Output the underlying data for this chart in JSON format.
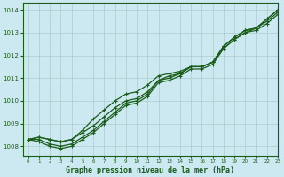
{
  "title": "Graphe pression niveau de la mer (hPa)",
  "bg_color": "#cce8f0",
  "grid_color": "#aacccc",
  "line_color": "#1a5c1a",
  "xlim": [
    -0.5,
    23
  ],
  "ylim": [
    1007.6,
    1014.3
  ],
  "yticks": [
    1008,
    1009,
    1010,
    1011,
    1012,
    1013,
    1014
  ],
  "xticks": [
    0,
    1,
    2,
    3,
    4,
    5,
    6,
    7,
    8,
    9,
    10,
    11,
    12,
    13,
    14,
    15,
    16,
    17,
    18,
    19,
    20,
    21,
    22,
    23
  ],
  "series": [
    [
      1008.3,
      1008.4,
      1008.3,
      1008.2,
      1008.3,
      1008.6,
      1008.9,
      1009.3,
      1009.7,
      1010.0,
      1010.1,
      1010.4,
      1010.9,
      1011.1,
      1011.2,
      1011.5,
      1011.5,
      1011.7,
      1012.4,
      1012.8,
      1013.1,
      1013.2,
      1013.6,
      1014.0
    ],
    [
      1008.3,
      1008.3,
      1008.1,
      1008.0,
      1008.1,
      1008.4,
      1008.7,
      1009.1,
      1009.5,
      1009.9,
      1010.0,
      1010.3,
      1010.9,
      1011.0,
      1011.2,
      1011.5,
      1011.5,
      1011.7,
      1012.4,
      1012.8,
      1013.1,
      1013.2,
      1013.5,
      1013.9
    ],
    [
      1008.3,
      1008.2,
      1008.0,
      1007.9,
      1008.0,
      1008.3,
      1008.6,
      1009.0,
      1009.4,
      1009.8,
      1009.9,
      1010.2,
      1010.8,
      1010.9,
      1011.1,
      1011.4,
      1011.4,
      1011.6,
      1012.3,
      1012.7,
      1013.0,
      1013.1,
      1013.4,
      1013.8
    ],
    [
      1008.3,
      1008.4,
      1008.3,
      1008.2,
      1008.3,
      1008.7,
      1009.2,
      1009.6,
      1010.0,
      1010.3,
      1010.4,
      1010.7,
      1011.1,
      1011.2,
      1011.3,
      1011.5,
      1011.5,
      1011.7,
      1012.3,
      1012.7,
      1013.0,
      1013.2,
      1013.6,
      1014.0
    ]
  ]
}
